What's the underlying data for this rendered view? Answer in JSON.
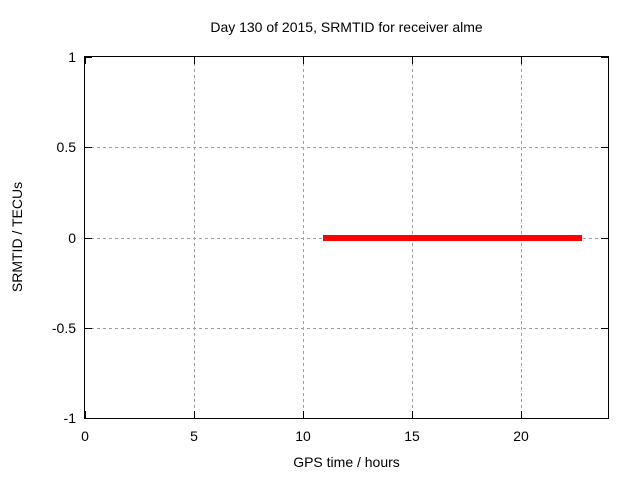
{
  "chart_data": {
    "type": "line",
    "title": "Day 130 of 2015, SRMTID for receiver alme",
    "xlabel": "GPS time / hours",
    "ylabel": "SRMTID / TECUs",
    "xlim": [
      0,
      24
    ],
    "ylim": [
      -1,
      1
    ],
    "x_ticks": [
      0,
      5,
      10,
      15,
      20
    ],
    "y_ticks": [
      1,
      0.5,
      0,
      -0.5,
      -1
    ],
    "grid": true,
    "grid_style": "dashed",
    "legend": "none",
    "series": [
      {
        "name": "SRMTID",
        "color": "#ff0000",
        "line_width": 6,
        "points": [
          [
            10.9,
            0
          ],
          [
            22.8,
            0
          ]
        ]
      }
    ]
  },
  "colors": {
    "background": "#ffffff",
    "border": "#000000",
    "grid": "#9e9e9e",
    "tick": "#000000",
    "text": "#000000",
    "series": "#ff0000"
  }
}
